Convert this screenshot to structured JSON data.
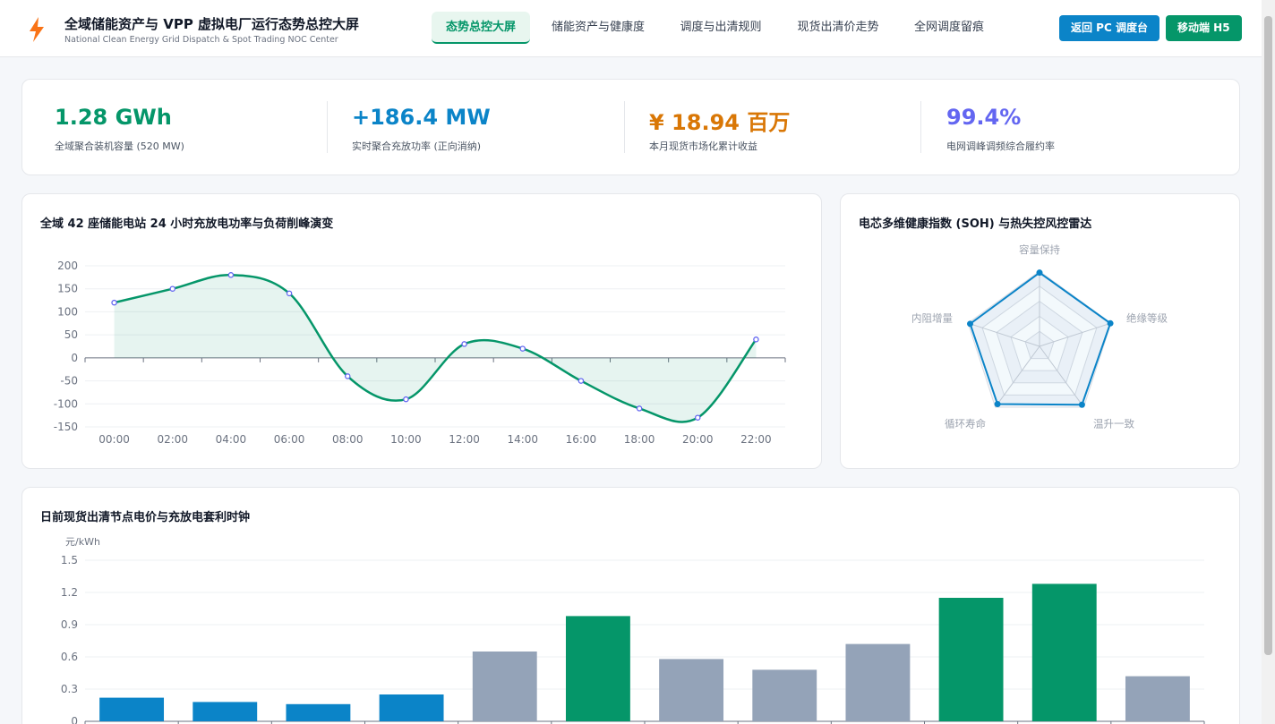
{
  "header": {
    "title": "全域储能资产与 VPP 虚拟电厂运行态势总控大屏",
    "subtitle": "National Clean Energy Grid Dispatch & Spot Trading NOC Center",
    "tabs": [
      {
        "label": "态势总控大屏",
        "active": true
      },
      {
        "label": "储能资产与健康度",
        "active": false
      },
      {
        "label": "调度与出清规则",
        "active": false
      },
      {
        "label": "现货出清价走势",
        "active": false
      },
      {
        "label": "全网调度留痕",
        "active": false
      }
    ],
    "buttons": {
      "pc": "返回 PC 调度台",
      "mobile": "移动端 H5"
    },
    "logo_icon": "lightning-bolt-icon"
  },
  "kpis": [
    {
      "value": "1.28 GWh",
      "label": "全域聚合装机容量 (520 MW)",
      "color": "#059669"
    },
    {
      "value": "+186.4 MW",
      "label": "实时聚合充放功率 (正向消纳)",
      "color": "#0b84c8"
    },
    {
      "value": "¥ 18.94 百万",
      "label": "本月现货市场化累计收益",
      "color": "#d97706"
    },
    {
      "value": "99.4%",
      "label": "电网调峰调频综合履约率",
      "color": "#6366f1"
    }
  ],
  "chart_data": [
    {
      "type": "line",
      "title": "全域 42 座储能电站 24 小时充放电功率与负荷削峰演变",
      "x": [
        "00:00",
        "02:00",
        "04:00",
        "06:00",
        "08:00",
        "10:00",
        "12:00",
        "14:00",
        "16:00",
        "18:00",
        "20:00",
        "22:00"
      ],
      "series": [
        {
          "values": [
            120,
            150,
            180,
            140,
            -40,
            -90,
            30,
            20,
            -50,
            -110,
            -130,
            40
          ],
          "color": "#059669"
        }
      ],
      "ylim": [
        -150,
        200
      ],
      "yticks": [
        200,
        150,
        100,
        50,
        0,
        -50,
        -100,
        -150
      ],
      "smooth": true,
      "area": true,
      "grid": true
    },
    {
      "type": "radar",
      "title": "电芯多维健康指数 (SOH) 与热失控风控雷达",
      "axes": [
        "容量保持",
        "绝缘等级",
        "温升一致",
        "循环寿命",
        "内阻增量"
      ],
      "values": [
        98,
        99,
        96,
        95,
        97
      ],
      "max": 100,
      "color": "#0b84c8"
    },
    {
      "type": "bar",
      "title": "日前现货出清节点电价与充放电套利时钟",
      "ylabel": "元/kWh",
      "ylim": [
        0,
        1.5
      ],
      "yticks": [
        "1.5",
        "1.2",
        "0.9",
        "0.6",
        "0.3",
        "0"
      ],
      "values": [
        0.22,
        0.18,
        0.16,
        0.25,
        0.65,
        0.98,
        0.58,
        0.48,
        0.72,
        1.15,
        1.28,
        0.42
      ],
      "colors": [
        "#0b84c8",
        "#0b84c8",
        "#0b84c8",
        "#0b84c8",
        "#94a3b8",
        "#059669",
        "#94a3b8",
        "#94a3b8",
        "#94a3b8",
        "#059669",
        "#059669",
        "#94a3b8"
      ]
    }
  ]
}
